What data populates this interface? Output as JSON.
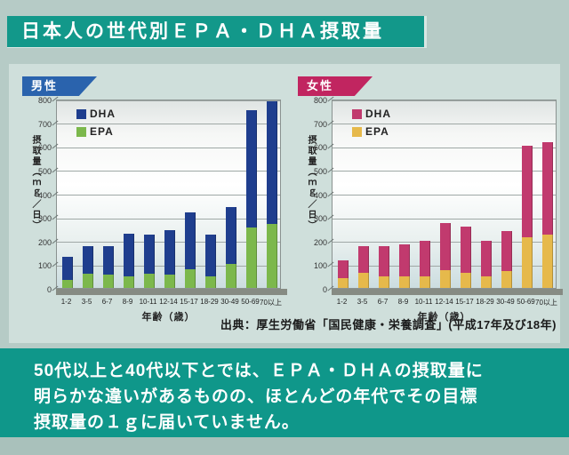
{
  "page": {
    "title": "日本人の世代別ＥＰＡ・ＤＨＡ摂取量",
    "source": "出典：厚生労働省「国民健康・栄養調査」(平成17年及び18年)",
    "caption_lines": [
      "50代以上と40代以下とでは、ＥＰＡ・ＤＨＡの摂取量に",
      "明らかな違いがあるものの、ほとんどの年代でその目標",
      "摂取量の１ｇに届いていません。"
    ],
    "colors": {
      "page_bg": "#b6cbc6",
      "panel_bg": "#cfdfdb",
      "teal_accent": "#0f978a",
      "male_banner": "#2a63ad",
      "female_banner": "#c12560"
    }
  },
  "chart_data": [
    {
      "type": "bar",
      "stacked": true,
      "group": "男性",
      "banner_color": "#2a63ad",
      "categories": [
        "1-2",
        "3-5",
        "6-7",
        "8-9",
        "10-11",
        "12-14",
        "15-17",
        "18-29",
        "30-49",
        "50-69",
        "70以上"
      ],
      "series": [
        {
          "name": "EPA",
          "color": "#7cb84c",
          "values": [
            35,
            60,
            55,
            50,
            60,
            55,
            80,
            50,
            100,
            255,
            270
          ]
        },
        {
          "name": "DHA",
          "color": "#1f3e8e",
          "values": [
            95,
            115,
            120,
            180,
            165,
            190,
            240,
            175,
            240,
            495,
            520
          ]
        }
      ],
      "totals": [
        130,
        175,
        175,
        230,
        225,
        245,
        320,
        225,
        340,
        750,
        790
      ],
      "legend": [
        "DHA",
        "EPA"
      ],
      "legend_position": "top-left",
      "ylabel": "摂取量（ｍｇ／日）",
      "xlabel": "年齢（歳）",
      "ylim": [
        0,
        800
      ],
      "ytick_step": 100,
      "grid": true
    },
    {
      "type": "bar",
      "stacked": true,
      "group": "女性",
      "banner_color": "#c12560",
      "categories": [
        "1-2",
        "3-5",
        "6-7",
        "8-9",
        "10-11",
        "12-14",
        "15-17",
        "18-29",
        "30-49",
        "50-69",
        "70以上"
      ],
      "series": [
        {
          "name": "EPA",
          "color": "#e6b94b",
          "values": [
            40,
            65,
            50,
            50,
            50,
            75,
            65,
            50,
            70,
            215,
            225
          ]
        },
        {
          "name": "DHA",
          "color": "#c13a6e",
          "values": [
            75,
            110,
            125,
            135,
            150,
            200,
            195,
            150,
            170,
            385,
            390
          ]
        }
      ],
      "totals": [
        115,
        175,
        175,
        185,
        200,
        275,
        260,
        200,
        240,
        600,
        615
      ],
      "legend": [
        "DHA",
        "EPA"
      ],
      "legend_position": "top-left",
      "ylabel": "摂取量（ｍｇ／日）",
      "xlabel": "年齢（歳）",
      "ylim": [
        0,
        800
      ],
      "ytick_step": 100,
      "grid": true
    }
  ]
}
